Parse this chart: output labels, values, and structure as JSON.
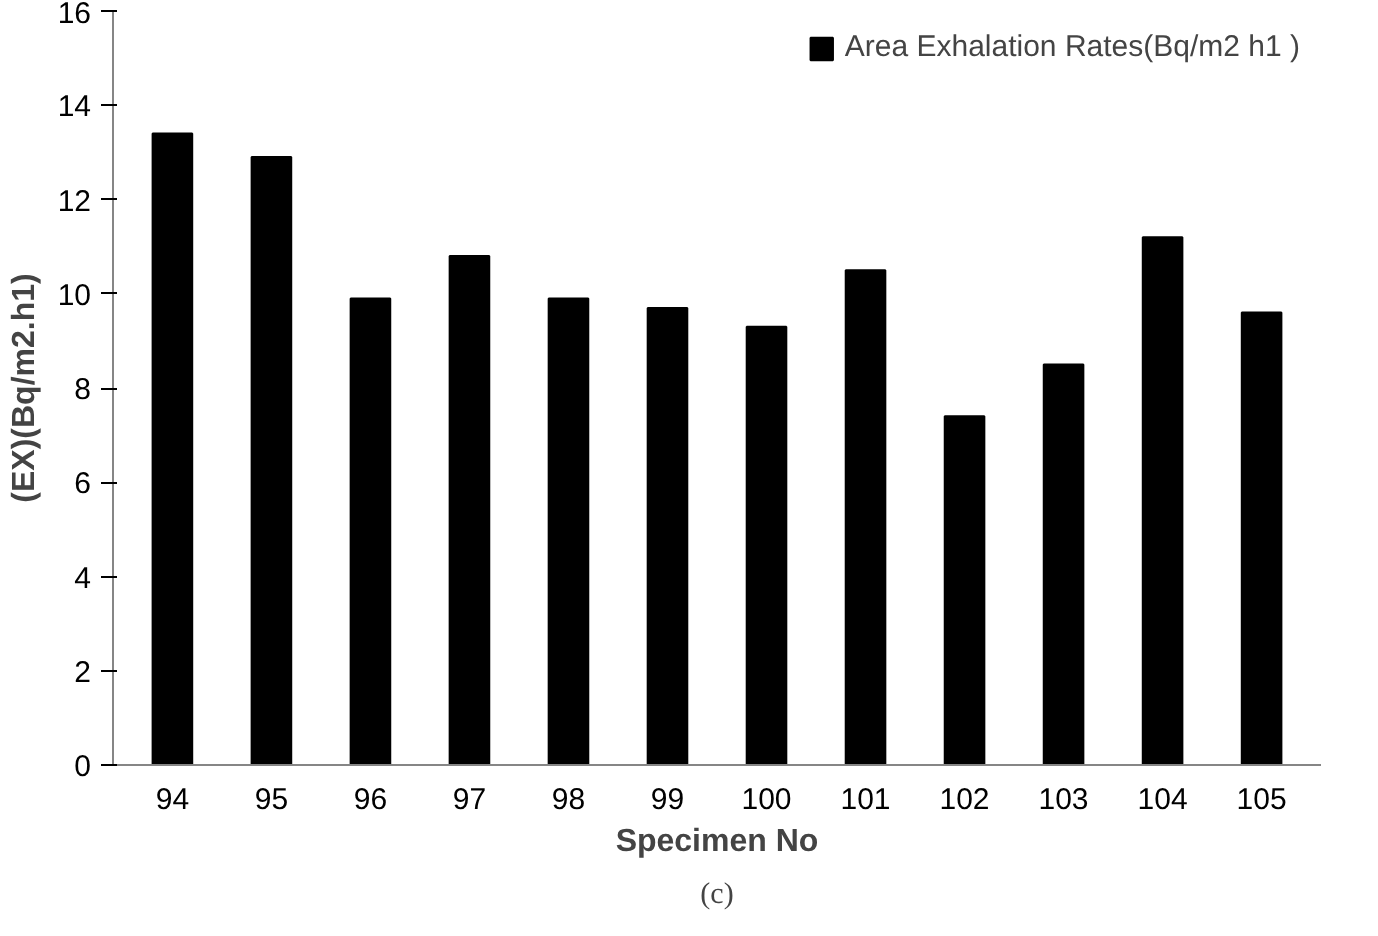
{
  "chart_data": {
    "type": "bar",
    "xlabel": "Specimen No",
    "ylabel": "(EX)(Bq/m2.h1)",
    "categories": [
      "94",
      "95",
      "96",
      "97",
      "98",
      "99",
      "100",
      "101",
      "102",
      "103",
      "104",
      "105"
    ],
    "series": [
      {
        "name": "Area Exhalation Rates(Bq/m2 h1 )",
        "color": "#000000",
        "values": [
          13.4,
          12.9,
          9.9,
          10.8,
          9.9,
          9.7,
          9.3,
          10.5,
          7.4,
          8.5,
          11.2,
          9.6
        ]
      }
    ],
    "ylim": [
      0,
      16
    ],
    "yticks": [
      0,
      2,
      4,
      6,
      8,
      10,
      12,
      14,
      16
    ],
    "grid": false,
    "legend": "top right",
    "annotations": [
      "(c)"
    ]
  }
}
